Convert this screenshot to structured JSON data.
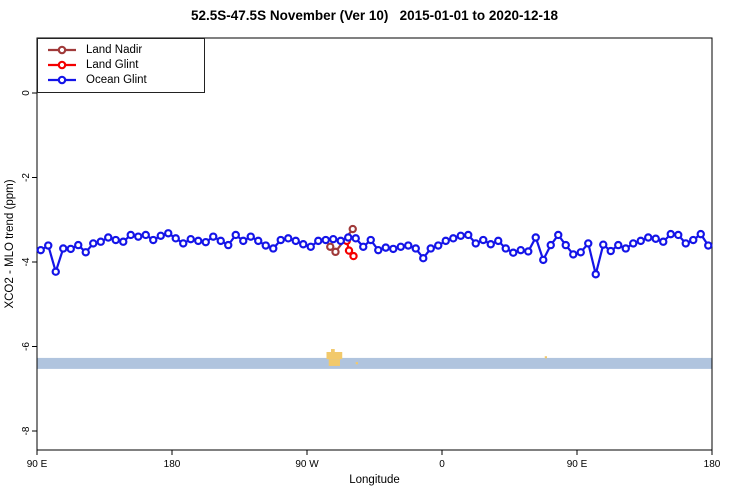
{
  "title": "52.5S-47.5S November (Ver 10)   2015-01-01 to 2020-12-18",
  "legend": {
    "items": [
      {
        "label": "Land Nadir",
        "color": "#A03A3A"
      },
      {
        "label": "Land Glint",
        "color": "#F40000"
      },
      {
        "label": "Ocean Glint",
        "color": "#1414E8"
      }
    ]
  },
  "axes": {
    "x": {
      "label": "Longitude",
      "range_deg": [
        0,
        450
      ],
      "ticks": [
        {
          "label": "90 E",
          "deg": 0
        },
        {
          "label": "180",
          "deg": 90
        },
        {
          "label": "90 W",
          "deg": 180
        },
        {
          "label": "0",
          "deg": 270
        },
        {
          "label": "90 E",
          "deg": 360
        },
        {
          "label": "180",
          "deg": 450
        }
      ]
    },
    "y": {
      "label": "XCO2 - MLO trend (ppm)",
      "range": [
        1.3,
        -8.45
      ],
      "ticks": [
        {
          "label": "0",
          "value": 0
        },
        {
          "label": "-2",
          "value": -2
        },
        {
          "label": "-4",
          "value": -4
        },
        {
          "label": "-6",
          "value": -6
        },
        {
          "label": "-8",
          "value": -8
        }
      ]
    }
  },
  "chart_data": {
    "type": "line",
    "title": "52.5S-47.5S November (Ver 10)   2015-01-01 to 2020-12-18",
    "xlabel": "Longitude",
    "ylabel": "XCO2 - MLO trend (ppm)",
    "x_axis_note": "axis starts at 90E and wraps eastward: 90E,180,90W,0,90E,180; deg = degrees from left edge",
    "series": [
      {
        "name": "Ocean Glint",
        "color": "#1414E8",
        "deg_start": 2.5,
        "deg_step": 5,
        "values": [
          -3.72,
          -3.61,
          -4.23,
          -3.68,
          -3.69,
          -3.6,
          -3.77,
          -3.56,
          -3.52,
          -3.42,
          -3.48,
          -3.52,
          -3.36,
          -3.4,
          -3.36,
          -3.48,
          -3.38,
          -3.32,
          -3.44,
          -3.56,
          -3.46,
          -3.5,
          -3.53,
          -3.4,
          -3.5,
          -3.6,
          -3.36,
          -3.5,
          -3.4,
          -3.5,
          -3.61,
          -3.68,
          -3.48,
          -3.44,
          -3.5,
          -3.58,
          -3.64,
          -3.5,
          -3.48,
          -3.46,
          -3.5,
          -3.42,
          -3.44,
          -3.64,
          -3.48,
          -3.72,
          -3.66,
          -3.69,
          -3.64,
          -3.61,
          -3.68,
          -3.91,
          -3.68,
          -3.61,
          -3.5,
          -3.44,
          -3.38,
          -3.36,
          -3.56,
          -3.48,
          -3.58,
          -3.5,
          -3.68,
          -3.78,
          -3.72,
          -3.75,
          -3.42,
          -3.95,
          -3.6,
          -3.36,
          -3.6,
          -3.82,
          -3.77,
          -3.56,
          -4.29,
          -3.59,
          -3.74,
          -3.6,
          -3.68,
          -3.56,
          -3.5,
          -3.42,
          -3.45,
          -3.52,
          -3.34,
          -3.36,
          -3.56,
          -3.48,
          -3.34,
          -3.61
        ]
      },
      {
        "name": "Land Nadir",
        "color": "#A03A3A",
        "points": [
          {
            "deg": 195.5,
            "value": -3.64
          },
          {
            "deg": 199.0,
            "value": -3.76
          },
          {
            "deg": 210.5,
            "value": -3.22
          }
        ]
      },
      {
        "name": "Land Glint",
        "color": "#F40000",
        "points": [
          {
            "deg": 206.5,
            "value": -3.5
          },
          {
            "deg": 208.0,
            "value": -3.73
          },
          {
            "deg": 211.0,
            "value": -3.86
          }
        ]
      }
    ],
    "band": {
      "color": "#B0C4DE",
      "deg_start": 0,
      "deg_end": 450,
      "value_top": -6.27,
      "value_bottom": -6.53
    },
    "land_marks": {
      "color": "#F2C96B",
      "rects": [
        {
          "d0": 193.0,
          "d1": 203.5,
          "v0": -6.13,
          "v1": -6.3
        },
        {
          "d0": 194.5,
          "d1": 202.0,
          "v0": -6.3,
          "v1": -6.46
        },
        {
          "d0": 196.0,
          "d1": 198.5,
          "v0": -6.06,
          "v1": -6.13
        },
        {
          "d0": 212.5,
          "d1": 214.0,
          "v0": -6.37,
          "v1": -6.42
        },
        {
          "d0": 338.5,
          "d1": 340.0,
          "v0": -6.23,
          "v1": -6.28
        }
      ]
    }
  }
}
